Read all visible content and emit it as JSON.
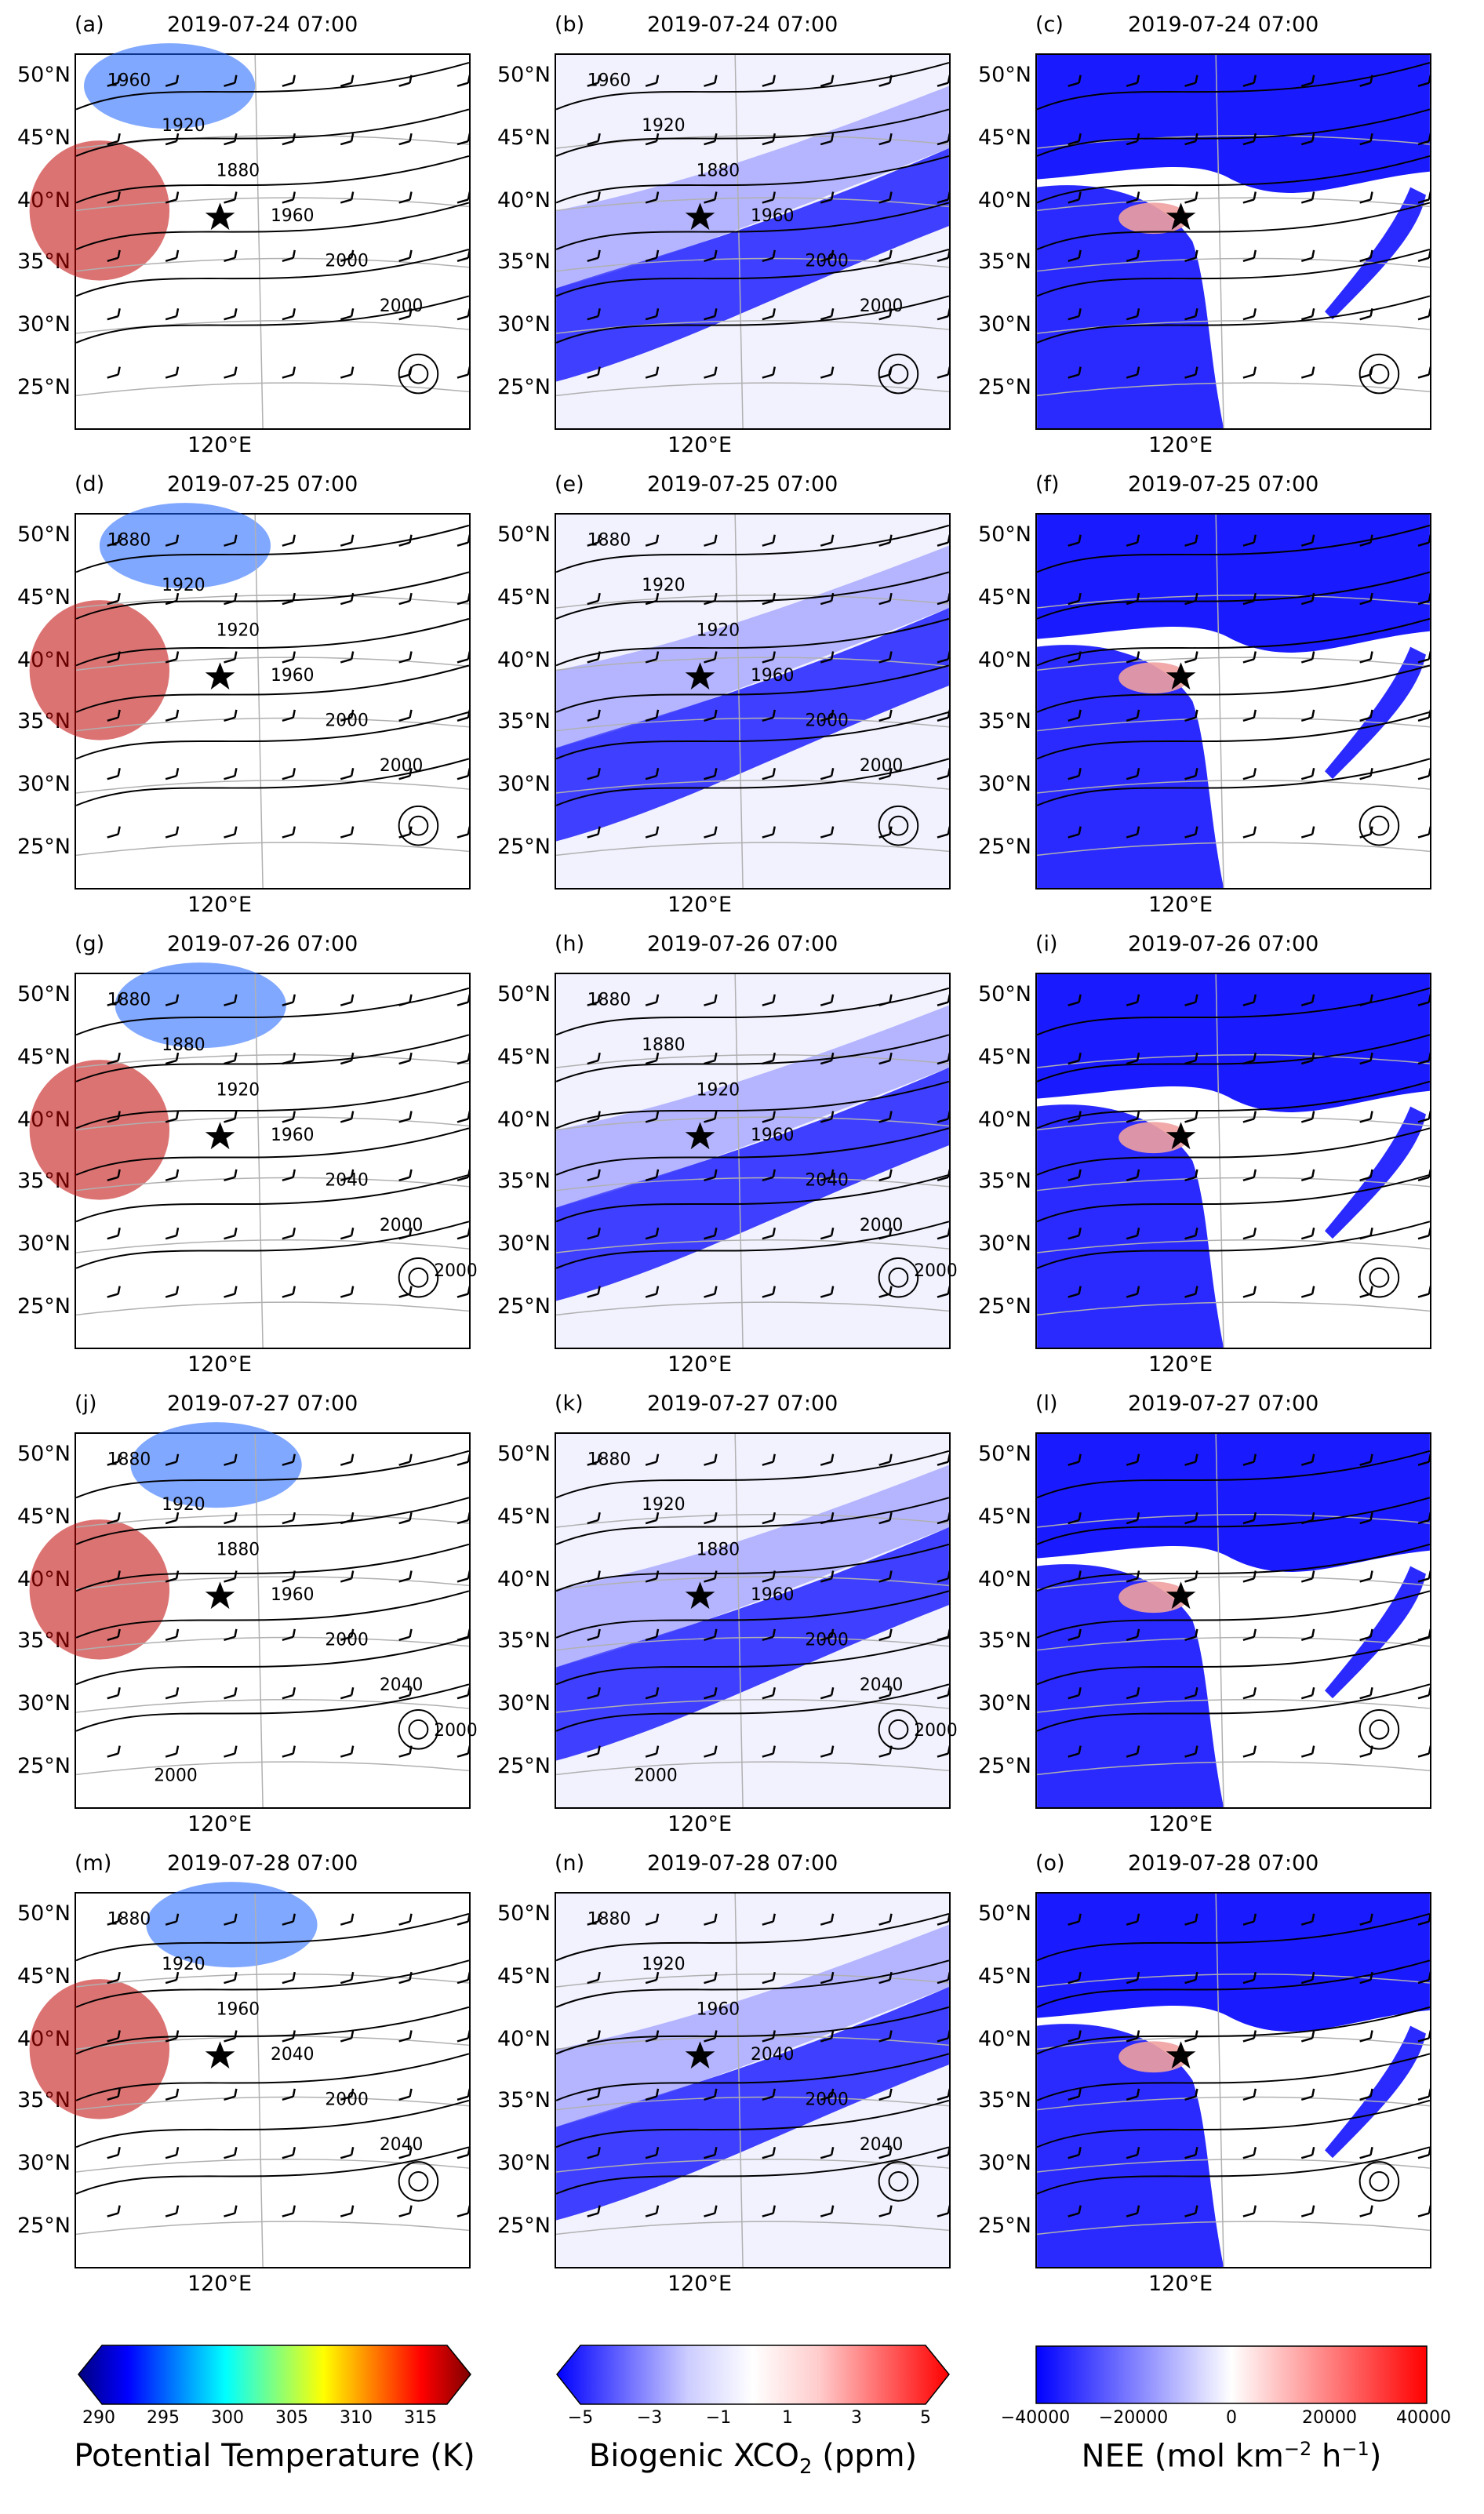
{
  "lat_labels": [
    "50°N",
    "45°N",
    "40°N",
    "35°N",
    "30°N",
    "25°N"
  ],
  "lon_label": "120°E",
  "rows": [
    {
      "date": "2019-07-24 07:00",
      "labels": [
        "(a)",
        "(b)",
        "(c)"
      ]
    },
    {
      "date": "2019-07-25 07:00",
      "labels": [
        "(d)",
        "(e)",
        "(f)"
      ]
    },
    {
      "date": "2019-07-26 07:00",
      "labels": [
        "(g)",
        "(h)",
        "(i)"
      ]
    },
    {
      "date": "2019-07-27 07:00",
      "labels": [
        "(j)",
        "(k)",
        "(l)"
      ]
    },
    {
      "date": "2019-07-28 07:00",
      "labels": [
        "(m)",
        "(n)",
        "(o)"
      ]
    }
  ],
  "contour_labels": [
    [
      "1960",
      "1920",
      "1880",
      "1960",
      "2000",
      "2000"
    ],
    [
      "1880",
      "1920",
      "1920",
      "1960",
      "2000",
      "2000"
    ],
    [
      "1880",
      "1880",
      "1920",
      "1960",
      "2040",
      "2000",
      "2000"
    ],
    [
      "1880",
      "1920",
      "1880",
      "1960",
      "2000",
      "2040",
      "2000",
      "2000"
    ],
    [
      "1880",
      "1920",
      "1960",
      "2040",
      "2000",
      "2040"
    ]
  ],
  "colorbars": [
    {
      "title": "Potential Temperature (K)",
      "ticks": [
        "290",
        "295",
        "300",
        "305",
        "310",
        "315"
      ],
      "colors": [
        "#00007f",
        "#0000ff",
        "#0080ff",
        "#00ffff",
        "#80ff80",
        "#ffff00",
        "#ff8000",
        "#ff0000",
        "#7f0000"
      ]
    },
    {
      "title_main": "Biogenic XCO",
      "title_sub": "2",
      "title_end": " (ppm)",
      "ticks": [
        "−5",
        "−3",
        "−1",
        "1",
        "3",
        "5"
      ],
      "colors": [
        "#0000ff",
        "#6666ff",
        "#ccccff",
        "#ffffff",
        "#ffcccc",
        "#ff6666",
        "#ff0000"
      ]
    },
    {
      "title_main": "NEE (mol km",
      "title_sup1": "−2",
      "title_mid": " h",
      "title_sup2": "−1",
      "title_end": ")",
      "ticks": [
        "−40000",
        "−20000",
        "0",
        "20000",
        "40000"
      ],
      "colors": [
        "#0000ff",
        "#8080ff",
        "#ffffff",
        "#ff8080",
        "#ff0000"
      ]
    }
  ]
}
